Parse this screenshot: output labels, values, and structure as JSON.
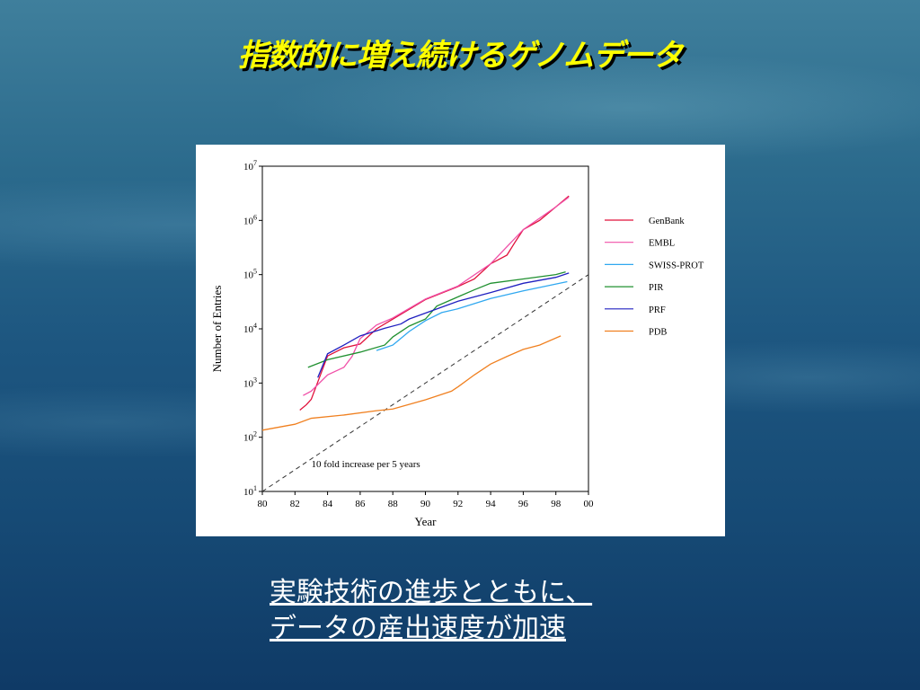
{
  "title": "指数的に増え続けるゲノムデータ",
  "caption": {
    "line1": "実験技術の進歩とともに、",
    "line2": "データの産出速度が加速"
  },
  "chart_data": {
    "type": "line",
    "xlabel": "Year",
    "ylabel": "Number of Entries",
    "xlim": [
      80,
      100
    ],
    "ylim_log10": [
      1,
      7
    ],
    "yscale": "log",
    "x_ticks": [
      "80",
      "82",
      "84",
      "86",
      "88",
      "90",
      "92",
      "94",
      "96",
      "98",
      "00"
    ],
    "y_ticks": [
      {
        "base": "10",
        "exp": "1"
      },
      {
        "base": "10",
        "exp": "2"
      },
      {
        "base": "10",
        "exp": "3"
      },
      {
        "base": "10",
        "exp": "4"
      },
      {
        "base": "10",
        "exp": "5"
      },
      {
        "base": "10",
        "exp": "6"
      },
      {
        "base": "10",
        "exp": "7"
      }
    ],
    "legend_position": "right",
    "series": [
      {
        "name": "GenBank",
        "color": "#e0103a",
        "x": [
          82.3,
          82.7,
          83,
          83.5,
          84,
          85,
          86,
          87,
          88,
          90,
          92,
          93,
          94,
          95,
          95.5,
          96,
          97,
          98,
          98.8
        ],
        "log10": [
          2.5,
          2.6,
          2.7,
          3.1,
          3.5,
          3.65,
          3.72,
          4.0,
          4.18,
          4.54,
          4.78,
          4.92,
          5.2,
          5.36,
          5.6,
          5.83,
          6.0,
          6.25,
          6.45
        ]
      },
      {
        "name": "EMBL",
        "color": "#f050a8",
        "x": [
          82.5,
          83,
          84,
          85,
          85.5,
          86,
          87,
          88,
          90,
          92,
          94,
          96,
          98,
          98.8
        ],
        "log10": [
          2.77,
          2.85,
          3.15,
          3.29,
          3.49,
          3.82,
          4.07,
          4.2,
          4.55,
          4.79,
          5.2,
          5.83,
          6.25,
          6.43
        ]
      },
      {
        "name": "SWISS-PROT",
        "color": "#30a8f0",
        "x": [
          87,
          88,
          89,
          90,
          91,
          92,
          94,
          96,
          98.7
        ],
        "log10": [
          3.6,
          3.7,
          3.95,
          4.15,
          4.3,
          4.37,
          4.56,
          4.7,
          4.87
        ]
      },
      {
        "name": "PIR",
        "color": "#209030",
        "x": [
          82.8,
          84,
          86,
          87.5,
          88,
          89,
          90,
          90.7,
          92,
          93,
          94,
          96,
          98,
          98.6
        ],
        "log10": [
          3.29,
          3.43,
          3.57,
          3.7,
          3.85,
          4.05,
          4.18,
          4.42,
          4.59,
          4.72,
          4.84,
          4.92,
          5.0,
          5.05
        ]
      },
      {
        "name": "PRF",
        "color": "#2020c0",
        "x": [
          83.4,
          84,
          85,
          86,
          87.5,
          88.5,
          89,
          90,
          91,
          92,
          94,
          96,
          98,
          98.8
        ],
        "log10": [
          3.1,
          3.54,
          3.7,
          3.87,
          4.01,
          4.09,
          4.18,
          4.29,
          4.4,
          4.51,
          4.67,
          4.84,
          4.95,
          5.03
        ]
      },
      {
        "name": "PDB",
        "color": "#f08020",
        "x": [
          80,
          82,
          83,
          85,
          87,
          88,
          90,
          91.6,
          92,
          93,
          94,
          95,
          96,
          97,
          98.3
        ],
        "log10": [
          2.13,
          2.24,
          2.35,
          2.41,
          2.49,
          2.52,
          2.69,
          2.85,
          2.93,
          3.15,
          3.35,
          3.49,
          3.62,
          3.7,
          3.87
        ]
      }
    ],
    "reference_line": {
      "label": "10 fold increase per 5 years",
      "x": [
        80,
        100
      ],
      "log10": [
        1,
        5
      ],
      "color": "#333333"
    }
  }
}
